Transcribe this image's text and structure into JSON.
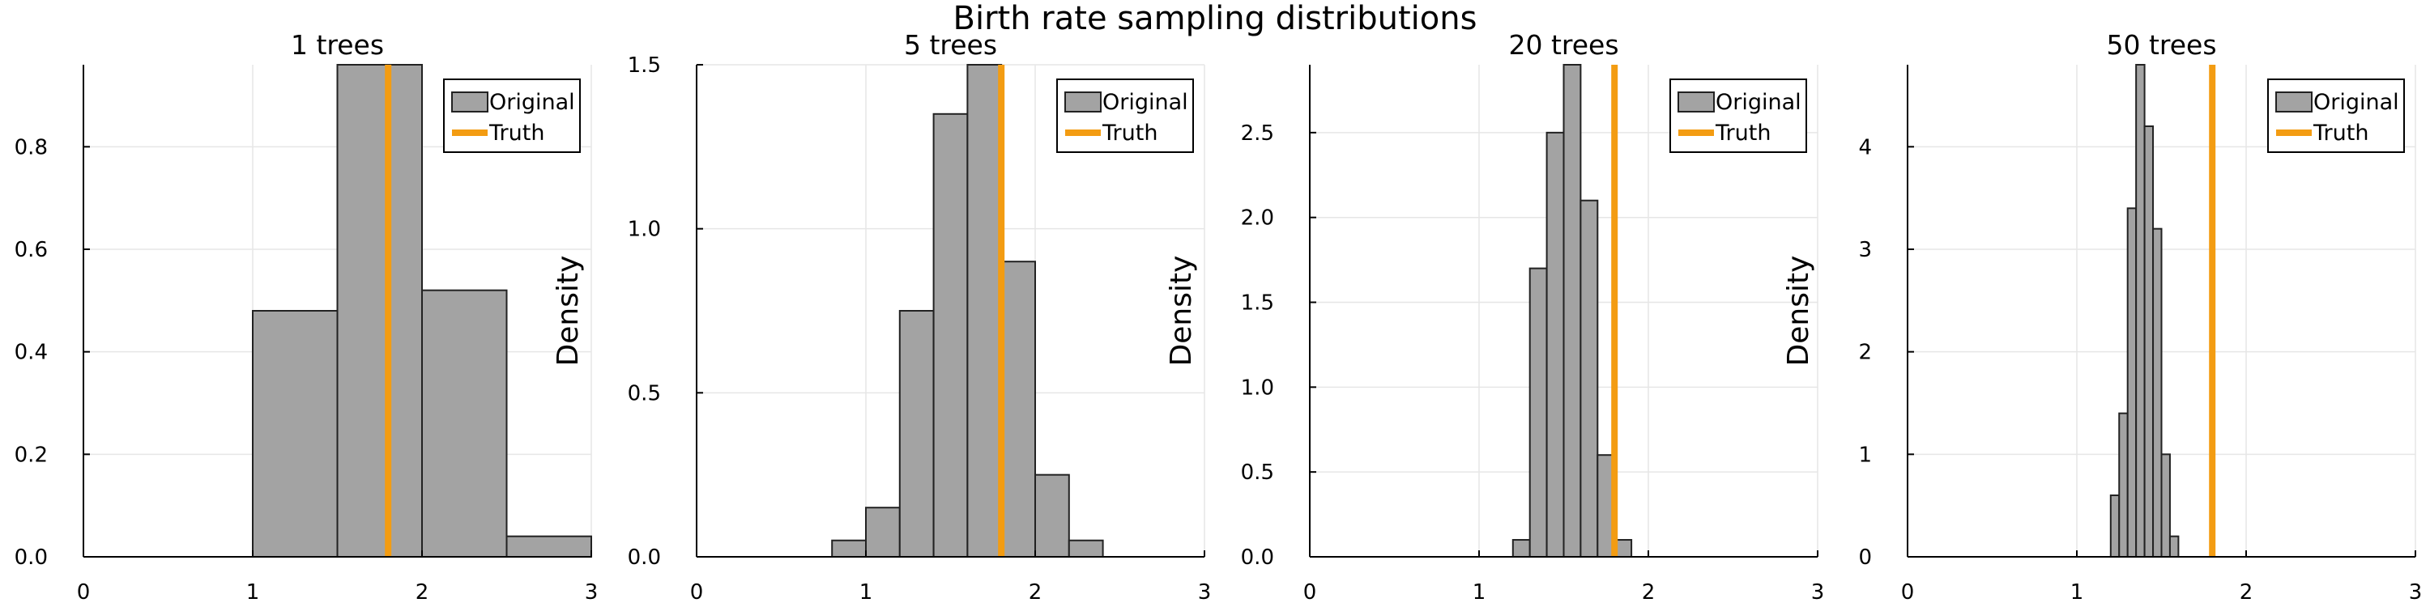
{
  "figure_title": "Birth rate sampling distributions",
  "colors": {
    "bar_fill": "#a3a3a3",
    "bar_edge": "#222222",
    "truth": "#f39c12",
    "grid": "#e6e6e6"
  },
  "chart_data": [
    {
      "type": "histogram",
      "title": "1 trees",
      "xlabel": "",
      "ylabel": "",
      "xlim": [
        0,
        3
      ],
      "ylim": [
        0,
        0.96
      ],
      "xticks": [
        0,
        1,
        2,
        3
      ],
      "yticks": [
        0.0,
        0.2,
        0.4,
        0.6,
        0.8
      ],
      "ytick_labels": [
        "0.0",
        "0.2",
        "0.4",
        "0.6",
        "0.8"
      ],
      "grid": true,
      "legend_position": "top-right",
      "series": [
        {
          "name": "Original",
          "kind": "bars",
          "bin_edges": [
            1.0,
            1.5,
            2.0,
            2.5,
            3.0
          ],
          "values": [
            0.48,
            0.96,
            0.52,
            0.04
          ]
        },
        {
          "name": "Truth",
          "kind": "vline",
          "x": 1.8
        }
      ]
    },
    {
      "type": "histogram",
      "title": "5 trees",
      "xlabel": "",
      "ylabel": "Density",
      "xlim": [
        0,
        3
      ],
      "ylim": [
        0,
        1.5
      ],
      "xticks": [
        0,
        1,
        2,
        3
      ],
      "yticks": [
        0.0,
        0.5,
        1.0,
        1.5
      ],
      "ytick_labels": [
        "0.0",
        "0.5",
        "1.0",
        "1.5"
      ],
      "grid": true,
      "legend_position": "top-right",
      "series": [
        {
          "name": "Original",
          "kind": "bars",
          "bin_edges": [
            0.8,
            1.0,
            1.2,
            1.4,
            1.6,
            1.8,
            2.0,
            2.2,
            2.4
          ],
          "values": [
            0.05,
            0.15,
            0.75,
            1.35,
            1.5,
            0.9,
            0.25,
            0.05
          ]
        },
        {
          "name": "Truth",
          "kind": "vline",
          "x": 1.8
        }
      ]
    },
    {
      "type": "histogram",
      "title": "20 trees",
      "xlabel": "",
      "ylabel": "Density",
      "xlim": [
        0,
        3
      ],
      "ylim": [
        0,
        2.9
      ],
      "xticks": [
        0,
        1,
        2,
        3
      ],
      "yticks": [
        0.0,
        0.5,
        1.0,
        1.5,
        2.0,
        2.5
      ],
      "ytick_labels": [
        "0.0",
        "0.5",
        "1.0",
        "1.5",
        "2.0",
        "2.5"
      ],
      "grid": true,
      "legend_position": "top-right",
      "series": [
        {
          "name": "Original",
          "kind": "bars",
          "bin_edges": [
            1.2,
            1.3,
            1.4,
            1.5,
            1.6,
            1.7,
            1.8,
            1.9
          ],
          "values": [
            0.1,
            1.7,
            2.5,
            2.9,
            2.1,
            0.6,
            0.1
          ]
        },
        {
          "name": "Truth",
          "kind": "vline",
          "x": 1.8
        }
      ]
    },
    {
      "type": "histogram",
      "title": "50 trees",
      "xlabel": "",
      "ylabel": "Density",
      "xlim": [
        0,
        3
      ],
      "ylim": [
        0,
        4.8
      ],
      "xticks": [
        0,
        1,
        2,
        3
      ],
      "yticks": [
        0,
        1,
        2,
        3,
        4
      ],
      "ytick_labels": [
        "0",
        "1",
        "2",
        "3",
        "4"
      ],
      "grid": true,
      "legend_position": "top-right",
      "series": [
        {
          "name": "Original",
          "kind": "bars",
          "bin_edges": [
            1.2,
            1.25,
            1.3,
            1.35,
            1.4,
            1.45,
            1.5,
            1.55,
            1.6,
            1.65
          ],
          "values": [
            0.6,
            1.4,
            3.4,
            4.8,
            4.2,
            3.2,
            1.0,
            0.2,
            0.0
          ]
        },
        {
          "name": "Truth",
          "kind": "vline",
          "x": 1.8
        }
      ]
    }
  ]
}
